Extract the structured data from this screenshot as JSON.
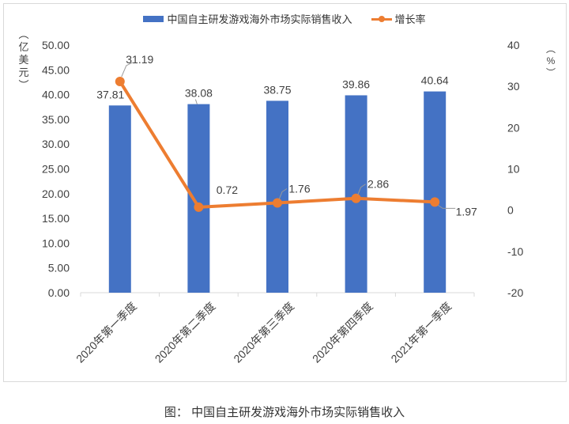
{
  "legend": {
    "bar_label": "中国自主研发游戏海外市场实际销售收入",
    "line_label": "增长率"
  },
  "axes": {
    "left_unit": "（亿美元）",
    "left_unit_chars": [
      "︵",
      "亿",
      "美",
      "元",
      "︶"
    ],
    "right_unit_chars": [
      "︵",
      "%",
      "︶"
    ],
    "left_ticks": [
      "50.00",
      "45.00",
      "40.00",
      "35.00",
      "30.00",
      "25.00",
      "20.00",
      "15.00",
      "10.00",
      "5.00",
      "0.00"
    ],
    "right_ticks": [
      "40",
      "30",
      "20",
      "10",
      "0",
      "-10",
      "-20"
    ]
  },
  "caption": "图：  中国自主研发游戏海外市场实际销售收入",
  "colors": {
    "bar": "#4472c4",
    "line": "#ed7d31",
    "text": "#404040",
    "axis": "#d9d9d9"
  },
  "chart_data": {
    "type": "bar",
    "title": "中国自主研发游戏海外市场实际销售收入",
    "categories": [
      "2020年第一季度",
      "2020年第二季度",
      "2020年第三季度",
      "2020年第四季度",
      "2021年第一季度"
    ],
    "series": [
      {
        "name": "中国自主研发游戏海外市场实际销售收入",
        "type": "bar",
        "axis": "left",
        "values": [
          37.81,
          38.08,
          38.75,
          39.86,
          40.64
        ],
        "labels": [
          "37.81",
          "38.08",
          "38.75",
          "39.86",
          "40.64"
        ]
      },
      {
        "name": "增长率",
        "type": "line",
        "axis": "right",
        "values": [
          31.19,
          0.72,
          1.76,
          2.86,
          1.97
        ],
        "labels": [
          "31.19",
          "0.72",
          "1.76",
          "2.86",
          "1.97"
        ]
      }
    ],
    "xlabel": "",
    "ylabel": "亿美元",
    "ylabel_right": "%",
    "ylim": [
      0,
      50
    ],
    "ylim_right": [
      -20,
      40
    ],
    "grid": false,
    "legend_position": "top"
  }
}
